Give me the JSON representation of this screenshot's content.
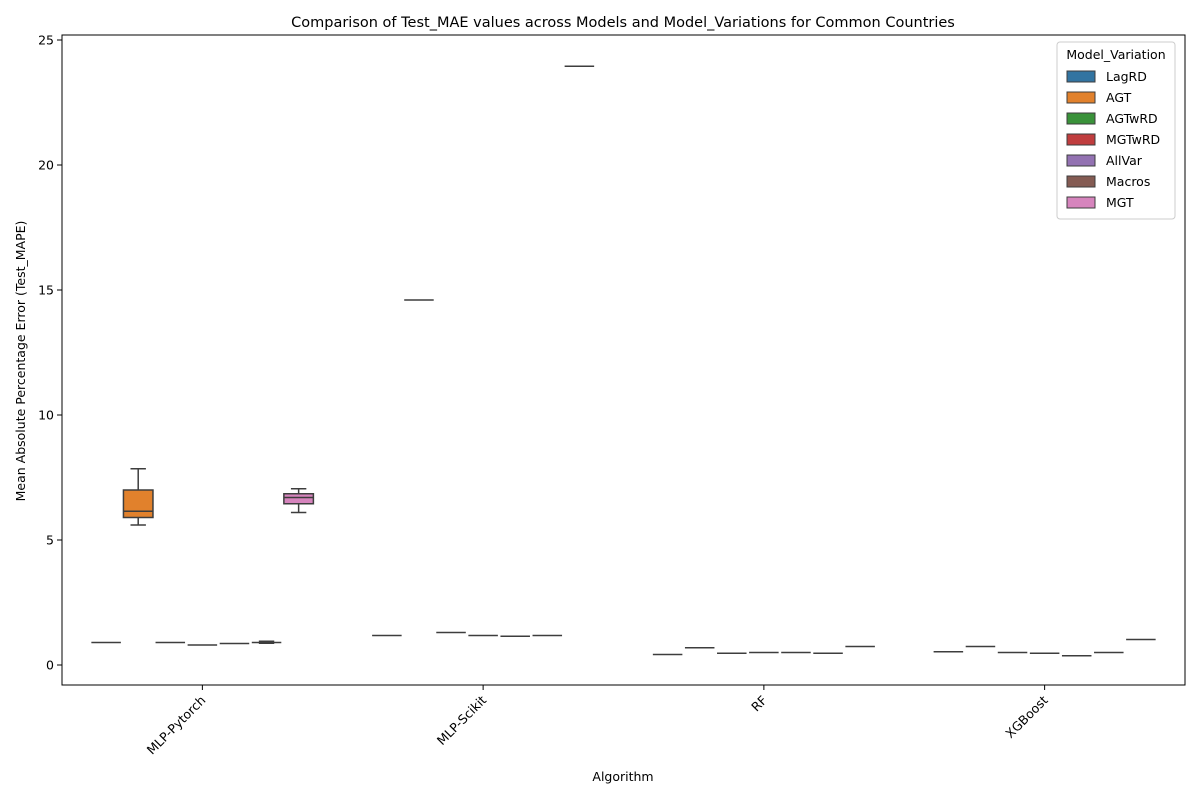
{
  "chart_data": {
    "type": "box",
    "title": "Comparison of Test_MAE values across Models and Model_Variations for Common Countries",
    "xlabel": "Algorithm",
    "ylabel": "Mean Absolute Percentage Error (Test_MAPE)",
    "ylim": [
      -0.8,
      25.2
    ],
    "yticks": [
      0,
      5,
      10,
      15,
      20,
      25
    ],
    "categories": [
      "MLP-Pytorch",
      "MLP-Scikit",
      "RF",
      "XGBoost"
    ],
    "legend": {
      "title": "Model_Variation",
      "placement": "top-right"
    },
    "series": [
      {
        "name": "LagRD",
        "color": "#3274a1",
        "boxes": [
          {
            "min": 0.88,
            "q1": 0.9,
            "median": 0.9,
            "q3": 0.9,
            "max": 0.92
          },
          {
            "min": 1.16,
            "q1": 1.18,
            "median": 1.18,
            "q3": 1.18,
            "max": 1.2
          },
          {
            "min": 0.4,
            "q1": 0.42,
            "median": 0.42,
            "q3": 0.42,
            "max": 0.44
          },
          {
            "min": 0.51,
            "q1": 0.53,
            "median": 0.53,
            "q3": 0.53,
            "max": 0.55
          }
        ]
      },
      {
        "name": "AGT",
        "color": "#e1812c",
        "boxes": [
          {
            "min": 5.6,
            "q1": 5.9,
            "median": 6.15,
            "q3": 7.0,
            "max": 7.85
          },
          {
            "min": 14.6,
            "q1": 14.6,
            "median": 14.6,
            "q3": 14.6,
            "max": 14.6
          },
          {
            "min": 0.67,
            "q1": 0.69,
            "median": 0.69,
            "q3": 0.69,
            "max": 0.71
          },
          {
            "min": 0.72,
            "q1": 0.74,
            "median": 0.74,
            "q3": 0.74,
            "max": 0.76
          }
        ]
      },
      {
        "name": "AGTwRD",
        "color": "#3a923a",
        "boxes": [
          {
            "min": 0.88,
            "q1": 0.9,
            "median": 0.9,
            "q3": 0.9,
            "max": 0.92
          },
          {
            "min": 1.28,
            "q1": 1.3,
            "median": 1.3,
            "q3": 1.3,
            "max": 1.32
          },
          {
            "min": 0.45,
            "q1": 0.47,
            "median": 0.47,
            "q3": 0.47,
            "max": 0.49
          },
          {
            "min": 0.48,
            "q1": 0.5,
            "median": 0.5,
            "q3": 0.5,
            "max": 0.52
          }
        ]
      },
      {
        "name": "MGTwRD",
        "color": "#c03d3e",
        "boxes": [
          {
            "min": 0.78,
            "q1": 0.8,
            "median": 0.8,
            "q3": 0.8,
            "max": 0.82
          },
          {
            "min": 1.16,
            "q1": 1.18,
            "median": 1.18,
            "q3": 1.18,
            "max": 1.2
          },
          {
            "min": 0.48,
            "q1": 0.5,
            "median": 0.5,
            "q3": 0.5,
            "max": 0.52
          },
          {
            "min": 0.45,
            "q1": 0.47,
            "median": 0.47,
            "q3": 0.47,
            "max": 0.49
          }
        ]
      },
      {
        "name": "AllVar",
        "color": "#9372b2",
        "boxes": [
          {
            "min": 0.84,
            "q1": 0.86,
            "median": 0.86,
            "q3": 0.86,
            "max": 0.88
          },
          {
            "min": 1.13,
            "q1": 1.15,
            "median": 1.15,
            "q3": 1.15,
            "max": 1.17
          },
          {
            "min": 0.48,
            "q1": 0.5,
            "median": 0.5,
            "q3": 0.5,
            "max": 0.52
          },
          {
            "min": 0.35,
            "q1": 0.37,
            "median": 0.37,
            "q3": 0.37,
            "max": 0.39
          }
        ]
      },
      {
        "name": "Macros",
        "color": "#845b53",
        "boxes": [
          {
            "min": 0.87,
            "q1": 0.9,
            "median": 0.9,
            "q3": 0.9,
            "max": 0.95
          },
          {
            "min": 1.16,
            "q1": 1.18,
            "median": 1.18,
            "q3": 1.18,
            "max": 1.2
          },
          {
            "min": 0.45,
            "q1": 0.47,
            "median": 0.47,
            "q3": 0.47,
            "max": 0.49
          },
          {
            "min": 0.48,
            "q1": 0.5,
            "median": 0.5,
            "q3": 0.5,
            "max": 0.52
          }
        ]
      },
      {
        "name": "MGT",
        "color": "#d684bd",
        "boxes": [
          {
            "min": 6.1,
            "q1": 6.45,
            "median": 6.7,
            "q3": 6.85,
            "max": 7.05
          },
          {
            "min": 23.95,
            "q1": 23.95,
            "median": 23.95,
            "q3": 23.95,
            "max": 23.95
          },
          {
            "min": 0.72,
            "q1": 0.74,
            "median": 0.74,
            "q3": 0.74,
            "max": 0.76
          },
          {
            "min": 1.0,
            "q1": 1.02,
            "median": 1.02,
            "q3": 1.02,
            "max": 1.04
          }
        ]
      }
    ]
  }
}
